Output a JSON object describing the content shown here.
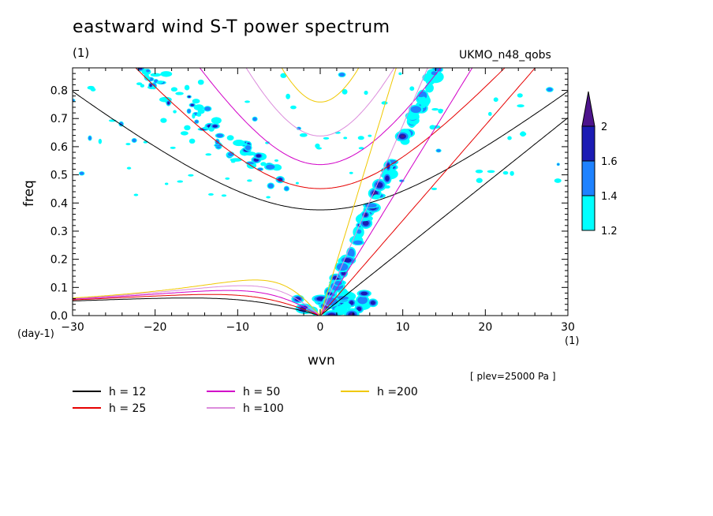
{
  "header": {
    "title": "eastward wind S-T power spectrum",
    "subtitle": "(1)",
    "dataset": "UKMO_n48_qobs",
    "level_note": "[ plev=25000 Pa ]"
  },
  "chart_data": {
    "type": "heatmap",
    "xlabel": "wvn",
    "ylabel": "freq",
    "xunit": "(1)",
    "yunit": "(day-1)",
    "xlim": [
      -30,
      30
    ],
    "ylim": [
      0,
      0.88
    ],
    "xticks": [
      -30,
      -20,
      -10,
      0,
      10,
      20,
      30
    ],
    "yticks": [
      0.0,
      0.1,
      0.2,
      0.3,
      0.4,
      0.5,
      0.6,
      0.7,
      0.8
    ],
    "colorbar": {
      "levels": [
        "1.2",
        "1.4",
        "1.6",
        "2"
      ],
      "colors": [
        "#00ffff",
        "#1e82ff",
        "#1c1cb4",
        "#4d148c"
      ]
    },
    "dispersion_curves": [
      {
        "name": "h = 12",
        "h": 12,
        "color": "#000000"
      },
      {
        "name": "h = 25",
        "h": 25,
        "color": "#e60000"
      },
      {
        "name": "h = 50",
        "h": 50,
        "color": "#d200c8"
      },
      {
        "name": "h =100",
        "h": 100,
        "color": "#dc8cdc"
      },
      {
        "name": "h =200",
        "h": 200,
        "color": "#f0c800"
      }
    ]
  }
}
